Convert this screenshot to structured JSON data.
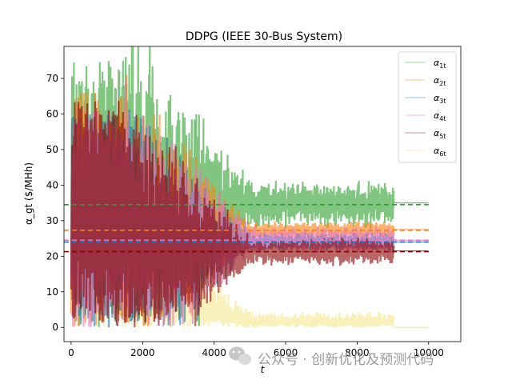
{
  "chart_data": {
    "type": "line",
    "title": "DDPG (IEEE 30-Bus System)",
    "xlabel": "t",
    "ylabel": "α_gt ($/MHh)",
    "xlim": [
      -200,
      10900
    ],
    "ylim": [
      -4,
      79
    ],
    "xticks": [
      0,
      2000,
      4000,
      6000,
      8000,
      10000
    ],
    "yticks": [
      0,
      10,
      20,
      30,
      40,
      50,
      60,
      70
    ],
    "legend_position": "top-right",
    "series": [
      {
        "name": "α_1t",
        "base": "α",
        "sub": "1t",
        "color": "#2ca02c",
        "mean": 34.5,
        "final": 35,
        "start_max": 75,
        "spread_end": 5
      },
      {
        "name": "α_2t",
        "base": "α",
        "sub": "2t",
        "color": "#ff7f0e",
        "mean": 27.3,
        "final": 27.5,
        "start_max": 66,
        "spread_end": 2
      },
      {
        "name": "α_3t",
        "base": "α",
        "sub": "3t",
        "color": "#1f77b4",
        "mean": 24.0,
        "final": 24,
        "start_max": 60,
        "spread_end": 2
      },
      {
        "name": "α_4t",
        "base": "α",
        "sub": "4t",
        "color": "#e377c2",
        "mean": 24.5,
        "final": 24.5,
        "start_max": 62,
        "spread_end": 3
      },
      {
        "name": "α_5t",
        "base": "α",
        "sub": "5t",
        "color": "#8b0000",
        "mean": 21.3,
        "final": 21.5,
        "start_max": 64,
        "spread_end": 3
      },
      {
        "name": "α_6t",
        "base": "α",
        "sub": "6t",
        "color": "#f0e06a",
        "mean": 0.5,
        "final": 0,
        "start_max": 48,
        "spread_end": 3
      }
    ],
    "training_end": 9000,
    "t_max": 10000
  },
  "watermark": {
    "text": "公众号 · 创新优化及预测代码",
    "icon": "wechat-icon"
  }
}
